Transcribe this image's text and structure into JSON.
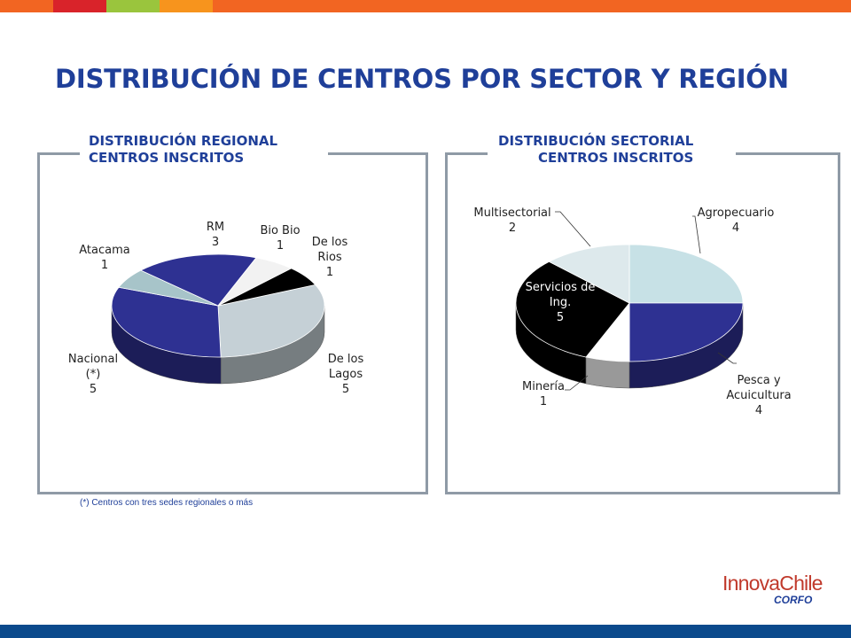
{
  "title": "DISTRIBUCIÓN DE CENTROS POR SECTOR Y REGIÓN",
  "colors": {
    "top_bar": [
      "#f26522",
      "#d9232a",
      "#9ac53d",
      "#f7941d",
      "#f26522"
    ],
    "bottom_bar": "#0b4a8c",
    "title": "#1f3f99",
    "panel_border": "#8f9aa6"
  },
  "panels": {
    "regional": {
      "title_line1": "DISTRIBUCIÓN REGIONAL",
      "title_line2": "CENTROS INSCRITOS"
    },
    "sectorial": {
      "title_line1": "DISTRIBUCIÓN SECTORIAL",
      "title_line2": "CENTROS INSCRITOS"
    }
  },
  "footnote": "(*) Centros con tres sedes regionales o más",
  "logo": {
    "brand": "InnovaChile",
    "sub": "CORFO"
  },
  "chart_data": [
    {
      "type": "pie",
      "title": "DISTRIBUCIÓN REGIONAL CENTROS INSCRITOS",
      "slices": [
        {
          "label": "De los Lagos",
          "value": 5,
          "color": "#c5d0d6"
        },
        {
          "label": "Nacional (*)",
          "value": 5,
          "color": "#2e3192"
        },
        {
          "label": "Atacama",
          "value": 1,
          "color": "#a7c4c9"
        },
        {
          "label": "RM",
          "value": 3,
          "color": "#2e3192"
        },
        {
          "label": "Bio Bio",
          "value": 1,
          "color": "#f2f2f2"
        },
        {
          "label": "De los Rios",
          "value": 1,
          "color": "#000000"
        }
      ]
    },
    {
      "type": "pie",
      "title": "DISTRIBUCIÓN SECTORIAL CENTROS INSCRITOS",
      "slices": [
        {
          "label": "Agropecuario",
          "value": 4,
          "color": "#c7e1e6"
        },
        {
          "label": "Pesca y Acuicultura",
          "value": 4,
          "color": "#2e3192"
        },
        {
          "label": "Minería",
          "value": 1,
          "color": "#ffffff"
        },
        {
          "label": "Servicios de Ing.",
          "value": 5,
          "color": "#000000"
        },
        {
          "label": "Multisectorial",
          "value": 2,
          "color": "#dde9ec"
        }
      ]
    }
  ]
}
